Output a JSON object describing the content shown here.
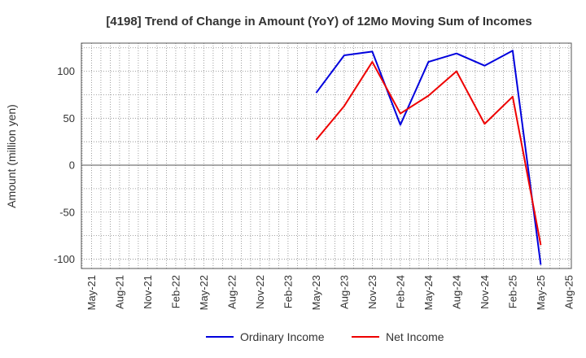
{
  "chart_data": {
    "type": "line",
    "title": "[4198]  Trend of Change in Amount (YoY) of 12Mo Moving Sum of Incomes",
    "ylabel": "Amount (million yen)",
    "xlabel": "",
    "ylim": [
      -110,
      130
    ],
    "yticks": [
      100,
      50,
      0,
      -50,
      -100
    ],
    "xticks": [
      "May-21",
      "Aug-21",
      "Nov-21",
      "Feb-22",
      "May-22",
      "Aug-22",
      "Nov-22",
      "Feb-23",
      "May-23",
      "Aug-23",
      "Nov-23",
      "Feb-24",
      "May-24",
      "Aug-24",
      "Nov-24",
      "Feb-25",
      "May-25",
      "Aug-25"
    ],
    "x": [
      "May-23",
      "Aug-23",
      "Nov-23",
      "Feb-24",
      "May-24",
      "Aug-24",
      "Nov-24",
      "Feb-25",
      "May-25"
    ],
    "series": [
      {
        "name": "Ordinary Income",
        "color": "#0000dd",
        "values": [
          77,
          117,
          121,
          43,
          110,
          119,
          106,
          122,
          -106
        ]
      },
      {
        "name": "Net Income",
        "color": "#ee0000",
        "values": [
          27,
          63,
          110,
          55,
          74,
          100,
          44,
          73,
          -85
        ]
      }
    ],
    "grid": true,
    "legend": "bottom-center"
  }
}
